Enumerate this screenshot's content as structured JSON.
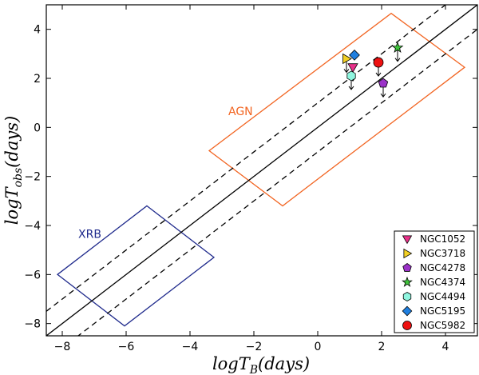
{
  "chart_data": {
    "type": "scatter",
    "xlabel": {
      "main": "logT",
      "sub": "B",
      "rest": "(days)"
    },
    "ylabel": {
      "main": "logT",
      "sub": "obs",
      "rest": "(days)"
    },
    "xlim": [
      -8.5,
      5.0
    ],
    "ylim": [
      -8.5,
      5.0
    ],
    "x_ticks": [
      -8,
      -6,
      -4,
      -2,
      0,
      2,
      4
    ],
    "y_ticks": [
      -8,
      -6,
      -4,
      -2,
      0,
      2,
      4
    ],
    "x_tick_labels": [
      "−8",
      "−6",
      "−4",
      "−2",
      "0",
      "2",
      "4"
    ],
    "y_tick_labels": [
      "−8",
      "−6",
      "−4",
      "−2",
      "0",
      "2",
      "4"
    ],
    "grid": false,
    "legend_position": "lower-right",
    "lines": [
      {
        "style": "solid",
        "slope": 1,
        "intercept": 0
      },
      {
        "style": "dashed",
        "slope": 1,
        "intercept": 1
      },
      {
        "style": "dashed",
        "slope": 1,
        "intercept": -1
      }
    ],
    "regions": [
      {
        "label": "AGN",
        "color": "#f26522",
        "label_at": [
          -2.8,
          0.5
        ],
        "vertices": [
          [
            2.3,
            4.65
          ],
          [
            4.6,
            2.45
          ],
          [
            -1.1,
            -3.2
          ],
          [
            -3.4,
            -0.95
          ]
        ]
      },
      {
        "label": "XRB",
        "color": "#1f2a8c",
        "label_at": [
          -7.5,
          -4.5
        ],
        "vertices": [
          [
            -5.35,
            -3.2
          ],
          [
            -3.25,
            -5.3
          ],
          [
            -6.05,
            -8.1
          ],
          [
            -8.15,
            -6.0
          ]
        ]
      }
    ],
    "series": [
      {
        "name": "NGC1052",
        "marker": "triangle-down",
        "color": "#e8318a",
        "x": 1.1,
        "y": 2.45,
        "upper_limit": true
      },
      {
        "name": "NGC3718",
        "marker": "triangle-right",
        "color": "#f2d024",
        "x": 0.9,
        "y": 2.8,
        "upper_limit": true
      },
      {
        "name": "NGC4278",
        "marker": "pentagon",
        "color": "#9b32c8",
        "x": 2.05,
        "y": 1.8,
        "upper_limit": true
      },
      {
        "name": "NGC4374",
        "marker": "star",
        "color": "#3ec43a",
        "x": 2.5,
        "y": 3.25,
        "upper_limit": true
      },
      {
        "name": "NGC4494",
        "marker": "hexagon",
        "color": "#8ff5df",
        "x": 1.05,
        "y": 2.1,
        "upper_limit": true
      },
      {
        "name": "NGC5195",
        "marker": "diamond",
        "color": "#1f7fe0",
        "x": 1.15,
        "y": 2.95,
        "upper_limit": false
      },
      {
        "name": "NGC5982",
        "marker": "circle",
        "color": "#ee1111",
        "x": 1.9,
        "y": 2.65,
        "upper_limit": true
      }
    ]
  }
}
